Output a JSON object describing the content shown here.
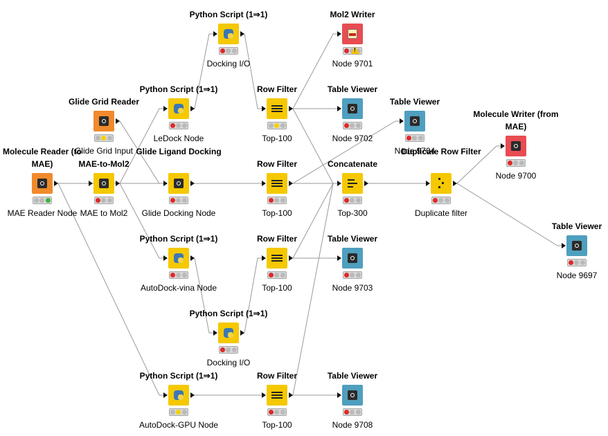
{
  "colors": {
    "python": "#f5c800",
    "manipulator": "#f5c800",
    "source": "#f08a2c",
    "visualizer": "#4f9fbf",
    "sink": "#e84c52",
    "light_red": "#e02828",
    "light_yellow": "#f5d000",
    "light_green": "#3cb43c",
    "light_off": "#b9b9b9",
    "edge": "#9a9a9a"
  },
  "workflow": {
    "nodes": [
      {
        "key": "mae_reader",
        "title": "Molecule Reader (to MAE)",
        "label": "MAE Reader Node",
        "kind": "source",
        "icon": "molecule-reader-icon",
        "ports": "out",
        "status": [
          "off",
          "off",
          "green"
        ]
      },
      {
        "key": "glide_grid",
        "title": "Glide Grid Reader",
        "label": "Glide Grid Input",
        "kind": "source",
        "icon": "glide-grid-reader-icon",
        "ports": "out",
        "status": [
          "off",
          "yellow",
          "off"
        ]
      },
      {
        "key": "mae_to_mol2",
        "title": "MAE-to-Mol2",
        "label": "MAE to Mol2",
        "kind": "manipulator",
        "icon": "mae-to-mol2-icon",
        "ports": "both",
        "status": [
          "red",
          "off",
          "off"
        ]
      },
      {
        "key": "py_ledock",
        "title": "Python Script (1⇒1)",
        "label": "LeDock Node",
        "kind": "python",
        "icon": "python-script-icon",
        "ports": "both",
        "status": [
          "red",
          "off",
          "off"
        ]
      },
      {
        "key": "glide_dock",
        "title": "Glide Ligand Docking",
        "label": "Glide Docking Node",
        "kind": "manipulator",
        "icon": "glide-ligand-docking-icon",
        "ports": "both",
        "status": [
          "red",
          "off",
          "off"
        ]
      },
      {
        "key": "py_vina",
        "title": "Python Script (1⇒1)",
        "label": "AutoDock-vina Node",
        "kind": "python",
        "icon": "python-script-icon",
        "ports": "both",
        "status": [
          "red",
          "off",
          "off"
        ]
      },
      {
        "key": "py_gpu",
        "title": "Python Script (1⇒1)",
        "label": "AutoDock-GPU Node",
        "kind": "python",
        "icon": "python-script-icon",
        "ports": "both",
        "status": [
          "off",
          "yellow",
          "off"
        ]
      },
      {
        "key": "py_dockio_top",
        "title": "Python Script (1⇒1)",
        "label": "Docking I/O",
        "kind": "python",
        "icon": "python-script-icon",
        "ports": "both",
        "status": [
          "red",
          "off",
          "off"
        ]
      },
      {
        "key": "py_dockio_bottom",
        "title": "Python Script (1⇒1)",
        "label": "Docking I/O",
        "kind": "python",
        "icon": "python-script-icon",
        "ports": "both",
        "status": [
          "red",
          "off",
          "off"
        ]
      },
      {
        "key": "rf_1",
        "title": "Row Filter",
        "label": "Top-100",
        "kind": "manipulator",
        "icon": "row-filter-icon",
        "ports": "both",
        "status": [
          "off",
          "yellow",
          "off"
        ]
      },
      {
        "key": "rf_2",
        "title": "Row Filter",
        "label": "Top-100",
        "kind": "manipulator",
        "icon": "row-filter-icon",
        "ports": "both",
        "status": [
          "red",
          "off",
          "off"
        ]
      },
      {
        "key": "rf_3",
        "title": "Row Filter",
        "label": "Top-100",
        "kind": "manipulator",
        "icon": "row-filter-icon",
        "ports": "both",
        "status": [
          "red",
          "off",
          "off"
        ]
      },
      {
        "key": "rf_4",
        "title": "Row Filter",
        "label": "Top-100",
        "kind": "manipulator",
        "icon": "row-filter-icon",
        "ports": "both",
        "status": [
          "red",
          "off",
          "off"
        ]
      },
      {
        "key": "mol2_writer",
        "title": "Mol2 Writer",
        "label": "Node 9701",
        "kind": "sink",
        "icon": "mol2-writer-icon",
        "ports": "in",
        "status": [
          "red",
          "warn",
          "off"
        ]
      },
      {
        "key": "tv_9702",
        "title": "Table Viewer",
        "label": "Node 9702",
        "kind": "visualizer",
        "icon": "table-viewer-icon",
        "ports": "in",
        "status": [
          "red",
          "off",
          "off"
        ]
      },
      {
        "key": "tv_9704",
        "title": "Table Viewer",
        "label": "Node 9704",
        "kind": "visualizer",
        "icon": "table-viewer-icon",
        "ports": "in",
        "status": [
          "red",
          "off",
          "off"
        ]
      },
      {
        "key": "concatenate",
        "title": "Concatenate",
        "label": "Top-300",
        "kind": "manipulator",
        "icon": "concatenate-icon",
        "ports": "both",
        "status": [
          "red",
          "off",
          "off"
        ]
      },
      {
        "key": "tv_9703",
        "title": "Table Viewer",
        "label": "Node 9703",
        "kind": "visualizer",
        "icon": "table-viewer-icon",
        "ports": "in",
        "status": [
          "red",
          "off",
          "off"
        ]
      },
      {
        "key": "tv_9708",
        "title": "Table Viewer",
        "label": "Node 9708",
        "kind": "visualizer",
        "icon": "table-viewer-icon",
        "ports": "in",
        "status": [
          "red",
          "off",
          "off"
        ]
      },
      {
        "key": "dup_filter",
        "title": "Duplicate Row Filter",
        "label": "Duplicate filter",
        "kind": "manipulator",
        "icon": "duplicate-row-filter-icon",
        "ports": "both",
        "status": [
          "red",
          "off",
          "off"
        ]
      },
      {
        "key": "mol_writer",
        "title": "Molecule Writer (from MAE)",
        "label": "Node 9700",
        "kind": "sink",
        "icon": "molecule-writer-icon",
        "ports": "in",
        "status": [
          "red",
          "off",
          "off"
        ]
      },
      {
        "key": "tv_9697",
        "title": "Table Viewer",
        "label": "Node 9697",
        "kind": "visualizer",
        "icon": "table-viewer-icon",
        "ports": "in",
        "status": [
          "red",
          "off",
          "off"
        ]
      }
    ],
    "edges": [
      [
        "mae_reader",
        "glide_dock"
      ],
      [
        "mae_reader",
        "py_gpu"
      ],
      [
        "glide_grid",
        "glide_dock"
      ],
      [
        "mae_to_mol2",
        "py_ledock"
      ],
      [
        "mae_to_mol2",
        "glide_dock"
      ],
      [
        "mae_to_mol2",
        "py_vina"
      ],
      [
        "py_ledock",
        "py_dockio_top"
      ],
      [
        "py_dockio_top",
        "rf_1"
      ],
      [
        "glide_dock",
        "rf_2"
      ],
      [
        "py_vina",
        "py_dockio_bottom"
      ],
      [
        "py_dockio_bottom",
        "rf_3"
      ],
      [
        "py_gpu",
        "rf_4"
      ],
      [
        "rf_1",
        "mol2_writer"
      ],
      [
        "rf_1",
        "tv_9702"
      ],
      [
        "rf_1",
        "concatenate"
      ],
      [
        "rf_2",
        "tv_9704"
      ],
      [
        "rf_2",
        "concatenate"
      ],
      [
        "rf_3",
        "tv_9703"
      ],
      [
        "rf_3",
        "concatenate"
      ],
      [
        "rf_4",
        "tv_9708"
      ],
      [
        "rf_4",
        "concatenate"
      ],
      [
        "concatenate",
        "dup_filter"
      ],
      [
        "dup_filter",
        "mol_writer"
      ],
      [
        "dup_filter",
        "tv_9697"
      ]
    ]
  }
}
